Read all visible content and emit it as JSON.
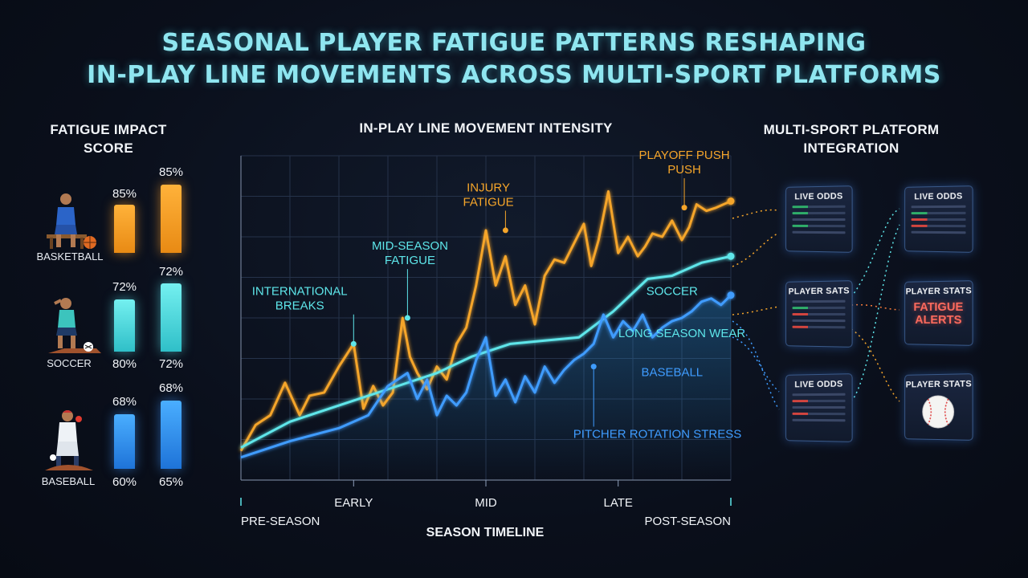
{
  "title": {
    "line1": "SEASONAL PLAYER FATIGUE PATTERNS RESHAPING",
    "line2": "IN-PLAY LINE MOVEMENTS ACROSS MULTI-SPORT PLATFORMS"
  },
  "left_panel": {
    "heading_line1": "FATIGUE IMPACT",
    "heading_line2": "SCORE",
    "sports": [
      {
        "name": "BASKETBALL",
        "icon": "basketball-player-icon",
        "color": "#f5a52a",
        "bars": [
          {
            "value": 85,
            "label": "85%"
          },
          {
            "value": 85,
            "label": "85%"
          }
        ],
        "bottom_labels": [
          "",
          ""
        ]
      },
      {
        "name": "SOCCER",
        "icon": "soccer-player-icon",
        "color": "#5ee6ea",
        "bars": [
          {
            "value": 72,
            "label": "72%"
          },
          {
            "value": 72,
            "label": "72%"
          }
        ],
        "bottom_labels": [
          "80%",
          "72%"
        ]
      },
      {
        "name": "BASEBALL",
        "icon": "baseball-player-icon",
        "color": "#3f9cff",
        "bars": [
          {
            "value": 68,
            "label": "68%"
          },
          {
            "value": 68,
            "label": "68%"
          }
        ],
        "bottom_labels": [
          "60%",
          "65%"
        ]
      }
    ]
  },
  "chart_data": {
    "type": "line",
    "title": "IN-PLAY LINE MOVEMENT INTENSITY",
    "xlabel": "SEASON TIMELINE",
    "ylabel": "",
    "grid": true,
    "xlim": [
      0,
      100
    ],
    "ylim": [
      0,
      100
    ],
    "tick_labels": {
      "upper": [
        {
          "x": 23,
          "label": "EARLY"
        },
        {
          "x": 50,
          "label": "MID"
        },
        {
          "x": 77,
          "label": "LATE"
        }
      ],
      "lower": [
        {
          "x": 0,
          "label": "PRE-SEASON"
        },
        {
          "x": 100,
          "label": "POST-SEASON"
        }
      ]
    },
    "series": [
      {
        "name": "",
        "color": "#f5a52a",
        "x": [
          0,
          3,
          6,
          9,
          12,
          14,
          17,
          20,
          23,
          25,
          27,
          29,
          31,
          33,
          34.5,
          36,
          38,
          40,
          42,
          44,
          46,
          48,
          50,
          52,
          54,
          56,
          58,
          60,
          62,
          64,
          66,
          68,
          70,
          71.5,
          73,
          75,
          77,
          79,
          81,
          82.5,
          84,
          86,
          88,
          90,
          91.5,
          93,
          95,
          97,
          100
        ],
        "y": [
          9,
          17,
          20,
          30,
          20,
          26,
          27,
          35,
          42,
          22,
          29,
          23,
          27,
          50,
          38,
          33,
          28,
          35,
          31,
          42,
          47,
          60,
          77,
          60,
          69,
          54,
          60,
          48,
          63,
          68,
          67,
          73,
          79,
          66,
          74,
          89,
          70,
          75,
          69,
          72,
          76,
          75,
          80,
          74,
          78,
          85,
          83,
          84,
          86
        ]
      },
      {
        "name": "SOCCER",
        "color": "#5ee6ea",
        "x": [
          0,
          10,
          20,
          30,
          40,
          47,
          55,
          62,
          69,
          76,
          83,
          88,
          94,
          100
        ],
        "y": [
          10,
          18,
          23,
          28,
          33,
          38,
          42,
          43,
          44,
          52,
          62,
          63,
          67,
          69
        ]
      },
      {
        "name": "BASEBALL",
        "color": "#3f9cff",
        "x": [
          0,
          10,
          20,
          26,
          30,
          34,
          36,
          38,
          40,
          42,
          44,
          46,
          48,
          50,
          52,
          54,
          56,
          58,
          60,
          62,
          64,
          66,
          68,
          70,
          72,
          74,
          76,
          78,
          80,
          82,
          84,
          86,
          88,
          90,
          92,
          94,
          96,
          98,
          100
        ],
        "y": [
          7,
          12,
          16,
          20,
          29,
          33,
          25,
          31,
          20,
          26,
          23,
          27,
          37,
          44,
          26,
          31,
          24,
          32,
          27,
          35,
          30,
          34,
          37,
          39,
          42,
          51,
          44,
          49,
          46,
          51,
          44,
          47,
          49,
          50,
          52,
          55,
          56,
          54,
          57
        ]
      }
    ],
    "series_labels": [
      {
        "text": "SOCCER",
        "color": "#5ee6ea",
        "x": 88,
        "y": 57
      },
      {
        "text": "BASEBALL",
        "color": "#3f9cff",
        "x": 88,
        "y": 32
      }
    ],
    "annotations": [
      {
        "lines": [
          "PLAYOFF PUSH",
          "PUSH"
        ],
        "color": "#f5a52a",
        "point_x": 90.5,
        "point_y": 84,
        "text_x": 90.5,
        "text_y": 99
      },
      {
        "lines": [
          "INJURY",
          "FATIGUE"
        ],
        "color": "#f5a52a",
        "point_x": 54,
        "point_y": 77,
        "text_x": 50.5,
        "text_y": 89
      },
      {
        "lines": [
          "MID-SEASON",
          "FATIGUE"
        ],
        "color": "#5ee6ea",
        "point_x": 34,
        "point_y": 50,
        "text_x": 34.5,
        "text_y": 71
      },
      {
        "lines": [
          "INTERNATIONAL",
          "BREAKS"
        ],
        "color": "#5ee6ea",
        "point_x": 23,
        "point_y": 42,
        "text_x": 12,
        "text_y": 57
      },
      {
        "lines": [
          "LONG SEASON WEAR"
        ],
        "color": "#5ee6ea",
        "point_x": 0,
        "point_y": 0,
        "text_x": 90,
        "text_y": 44,
        "no_point": true
      },
      {
        "lines": [
          "PITCHER ROTATION STRESS"
        ],
        "color": "#3f9cff",
        "point_x": 72,
        "point_y": 35,
        "text_x": 85,
        "text_y": 13
      }
    ]
  },
  "right_panel": {
    "heading_line1": "MULTI-SPORT PLATFORM",
    "heading_line2": "INTEGRATION",
    "cards": [
      {
        "label": "LIVE ODDS",
        "type": "odds"
      },
      {
        "label": "PLAYER SATS",
        "type": "stats"
      },
      {
        "label": "LIVE ODDS",
        "type": "odds"
      },
      {
        "label": "LIVE ODDS",
        "type": "odds"
      },
      {
        "label": "PLAYER STATS",
        "type": "alerts",
        "alert_line1": "FATIGUE",
        "alert_line2": "ALERTS"
      },
      {
        "label": "PLAYER STATS",
        "type": "baseball",
        "icon": "baseball-icon"
      }
    ]
  }
}
